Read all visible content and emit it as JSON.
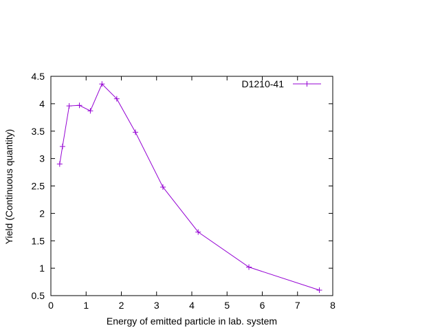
{
  "chart_data": {
    "type": "line",
    "title": "",
    "xlabel": "Energy of emitted particle in lab. system",
    "ylabel": "Yield (Continuous quantity)",
    "xlim": [
      0,
      8
    ],
    "ylim": [
      0.5,
      4.5
    ],
    "xticks": [
      0,
      1,
      2,
      3,
      4,
      5,
      6,
      7,
      8
    ],
    "yticks": [
      0.5,
      1,
      1.5,
      2,
      2.5,
      3,
      3.5,
      4,
      4.5
    ],
    "grid": false,
    "legend_position": "top-right",
    "series": [
      {
        "name": "D1210-41",
        "color": "#9400d3",
        "marker": "plus",
        "x": [
          0.25,
          0.33,
          0.52,
          0.81,
          1.12,
          1.45,
          1.87,
          2.4,
          3.18,
          4.18,
          5.62,
          7.62
        ],
        "y": [
          2.9,
          3.22,
          3.96,
          3.97,
          3.87,
          4.36,
          4.09,
          3.48,
          2.48,
          1.66,
          1.02,
          0.6
        ]
      }
    ]
  }
}
